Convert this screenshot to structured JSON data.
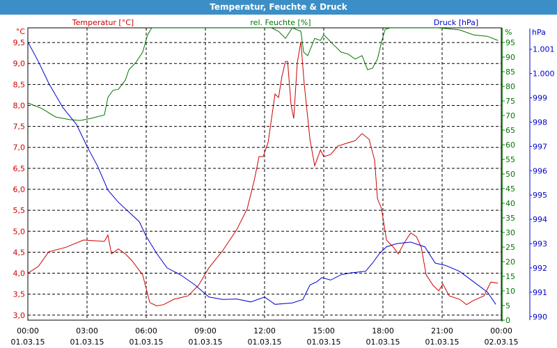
{
  "chart_data": {
    "type": "line",
    "title": "Temperatur, Feuchte & Druck",
    "xlabel": "",
    "xlim_hours": [
      0,
      24
    ],
    "x_ticks": [
      {
        "t": 0,
        "time": "00:00",
        "date": "01.03.15"
      },
      {
        "t": 3,
        "time": "03:00",
        "date": "01.03.15"
      },
      {
        "t": 6,
        "time": "06:00",
        "date": "01.03.15"
      },
      {
        "t": 9,
        "time": "09:00",
        "date": "01.03.15"
      },
      {
        "t": 12,
        "time": "12:00",
        "date": "01.03.15"
      },
      {
        "t": 15,
        "time": "15:00",
        "date": "01.03.15"
      },
      {
        "t": 18,
        "time": "18:00",
        "date": "01.03.15"
      },
      {
        "t": 21,
        "time": "21:00",
        "date": "01.03.15"
      },
      {
        "t": 24,
        "time": "00:00",
        "date": "02.03.15"
      }
    ],
    "grid": true,
    "axes": {
      "temp": {
        "label": "Temperatur [°C]",
        "unit": "°C",
        "color": "#cc0000",
        "ylim": [
          2.88,
          9.85
        ],
        "ticks": [
          "3,0",
          "3,5",
          "4,0",
          "4,5",
          "5,0",
          "5,5",
          "6,0",
          "6,5",
          "7,0",
          "7,5",
          "8,0",
          "8,5",
          "9,0",
          "9,5"
        ]
      },
      "hum": {
        "label": "rel. Feuchte [%]",
        "unit": "%",
        "color": "#007700",
        "ylim": [
          0,
          100
        ],
        "ticks": [
          "0",
          "5",
          "10",
          "15",
          "20",
          "25",
          "30",
          "35",
          "40",
          "45",
          "50",
          "55",
          "60",
          "65",
          "70",
          "75",
          "80",
          "85",
          "90",
          "95"
        ]
      },
      "press": {
        "label": "Druck [hPa]",
        "unit": "hPa",
        "color": "#0000cc",
        "ylim": [
          989.85,
          1001.88
        ],
        "ticks": [
          "990",
          "991",
          "992",
          "993",
          "994",
          "995",
          "996",
          "997",
          "998",
          "999",
          "1.000",
          "1.001"
        ]
      }
    },
    "series": [
      {
        "name": "Temperatur",
        "axis": "temp",
        "color": "#cc0000",
        "points": [
          [
            0,
            4.0
          ],
          [
            0.53,
            4.16
          ],
          [
            1.06,
            4.51
          ],
          [
            1.94,
            4.62
          ],
          [
            2.82,
            4.79
          ],
          [
            3.88,
            4.76
          ],
          [
            4.06,
            4.91
          ],
          [
            4.24,
            4.46
          ],
          [
            4.59,
            4.58
          ],
          [
            4.94,
            4.46
          ],
          [
            5.29,
            4.29
          ],
          [
            5.82,
            3.96
          ],
          [
            6.18,
            3.3
          ],
          [
            6.53,
            3.22
          ],
          [
            6.88,
            3.25
          ],
          [
            7.41,
            3.38
          ],
          [
            8.12,
            3.46
          ],
          [
            8.65,
            3.71
          ],
          [
            9.18,
            4.13
          ],
          [
            9.88,
            4.54
          ],
          [
            10.59,
            5.04
          ],
          [
            11.12,
            5.54
          ],
          [
            11.47,
            6.2
          ],
          [
            11.72,
            6.78
          ],
          [
            11.93,
            6.78
          ],
          [
            12.18,
            7.12
          ],
          [
            12.53,
            8.27
          ],
          [
            12.71,
            8.19
          ],
          [
            12.88,
            8.69
          ],
          [
            13.06,
            9.05
          ],
          [
            13.17,
            9.05
          ],
          [
            13.34,
            8.02
          ],
          [
            13.48,
            7.69
          ],
          [
            13.66,
            9.02
          ],
          [
            13.84,
            9.52
          ],
          [
            14.01,
            8.52
          ],
          [
            14.3,
            7.19
          ],
          [
            14.54,
            6.56
          ],
          [
            14.83,
            6.94
          ],
          [
            15.0,
            6.78
          ],
          [
            15.35,
            6.83
          ],
          [
            15.71,
            7.03
          ],
          [
            16.24,
            7.11
          ],
          [
            16.59,
            7.16
          ],
          [
            16.94,
            7.33
          ],
          [
            17.3,
            7.19
          ],
          [
            17.58,
            6.69
          ],
          [
            17.72,
            5.78
          ],
          [
            17.93,
            5.54
          ],
          [
            18.18,
            4.79
          ],
          [
            18.53,
            4.62
          ],
          [
            18.78,
            4.46
          ],
          [
            19.06,
            4.71
          ],
          [
            19.41,
            4.96
          ],
          [
            19.7,
            4.87
          ],
          [
            19.94,
            4.62
          ],
          [
            20.19,
            3.96
          ],
          [
            20.54,
            3.71
          ],
          [
            20.83,
            3.58
          ],
          [
            21.04,
            3.74
          ],
          [
            21.36,
            3.46
          ],
          [
            21.88,
            3.38
          ],
          [
            22.24,
            3.25
          ],
          [
            22.59,
            3.35
          ],
          [
            23.12,
            3.46
          ],
          [
            23.47,
            3.79
          ],
          [
            23.83,
            3.76
          ]
        ]
      },
      {
        "name": "rel. Feuchte",
        "axis": "hum",
        "color": "#007700",
        "points": [
          [
            0,
            74.3
          ],
          [
            0.71,
            72.4
          ],
          [
            1.41,
            69.5
          ],
          [
            2.12,
            68.6
          ],
          [
            2.65,
            68.3
          ],
          [
            3.18,
            69.0
          ],
          [
            3.88,
            70.2
          ],
          [
            4.06,
            76.2
          ],
          [
            4.31,
            78.6
          ],
          [
            4.59,
            79.0
          ],
          [
            4.94,
            82.1
          ],
          [
            5.12,
            85.7
          ],
          [
            5.47,
            88.1
          ],
          [
            5.82,
            91.7
          ],
          [
            6.07,
            97.6
          ],
          [
            6.28,
            100
          ],
          [
            12.35,
            100
          ],
          [
            12.71,
            98.8
          ],
          [
            13.06,
            96.4
          ],
          [
            13.41,
            100
          ],
          [
            13.84,
            98.8
          ],
          [
            13.98,
            91.7
          ],
          [
            14.19,
            90.5
          ],
          [
            14.4,
            94.0
          ],
          [
            14.54,
            96.4
          ],
          [
            14.83,
            95.7
          ],
          [
            15.0,
            97.6
          ],
          [
            15.18,
            96.4
          ],
          [
            15.53,
            94.0
          ],
          [
            15.88,
            91.7
          ],
          [
            16.24,
            91.0
          ],
          [
            16.59,
            89.3
          ],
          [
            16.94,
            90.5
          ],
          [
            17.22,
            85.7
          ],
          [
            17.47,
            86.2
          ],
          [
            17.72,
            89.3
          ],
          [
            17.93,
            95.2
          ],
          [
            18.11,
            99.5
          ],
          [
            18.36,
            100
          ],
          [
            20.8,
            100
          ],
          [
            21.88,
            99.3
          ],
          [
            22.59,
            97.6
          ],
          [
            23.3,
            97.1
          ],
          [
            23.83,
            95.7
          ]
        ]
      },
      {
        "name": "Druck",
        "axis": "press",
        "color": "#0000cc",
        "points": [
          [
            0,
            1001.3
          ],
          [
            0.53,
            1000.5
          ],
          [
            1.06,
            999.6
          ],
          [
            1.77,
            998.6
          ],
          [
            2.47,
            997.9
          ],
          [
            3.0,
            997.0
          ],
          [
            3.53,
            996.2
          ],
          [
            4.06,
            995.2
          ],
          [
            4.59,
            994.7
          ],
          [
            5.12,
            994.3
          ],
          [
            5.65,
            993.9
          ],
          [
            6.0,
            993.3
          ],
          [
            6.53,
            992.6
          ],
          [
            7.06,
            992.0
          ],
          [
            7.77,
            991.7
          ],
          [
            8.47,
            991.3
          ],
          [
            9.18,
            990.8
          ],
          [
            9.88,
            990.7
          ],
          [
            10.59,
            990.72
          ],
          [
            11.3,
            990.6
          ],
          [
            12.0,
            990.8
          ],
          [
            12.53,
            990.5
          ],
          [
            13.41,
            990.56
          ],
          [
            13.94,
            990.7
          ],
          [
            14.3,
            991.3
          ],
          [
            14.65,
            991.43
          ],
          [
            14.9,
            991.6
          ],
          [
            15.35,
            991.5
          ],
          [
            15.88,
            991.72
          ],
          [
            16.41,
            991.8
          ],
          [
            17.12,
            991.86
          ],
          [
            17.47,
            992.2
          ],
          [
            17.83,
            992.6
          ],
          [
            18.18,
            992.87
          ],
          [
            18.71,
            993.0
          ],
          [
            19.41,
            993.06
          ],
          [
            20.12,
            992.87
          ],
          [
            20.65,
            992.2
          ],
          [
            21.18,
            992.1
          ],
          [
            21.88,
            991.86
          ],
          [
            22.59,
            991.43
          ],
          [
            23.3,
            991.0
          ],
          [
            23.72,
            990.5
          ]
        ]
      }
    ]
  }
}
